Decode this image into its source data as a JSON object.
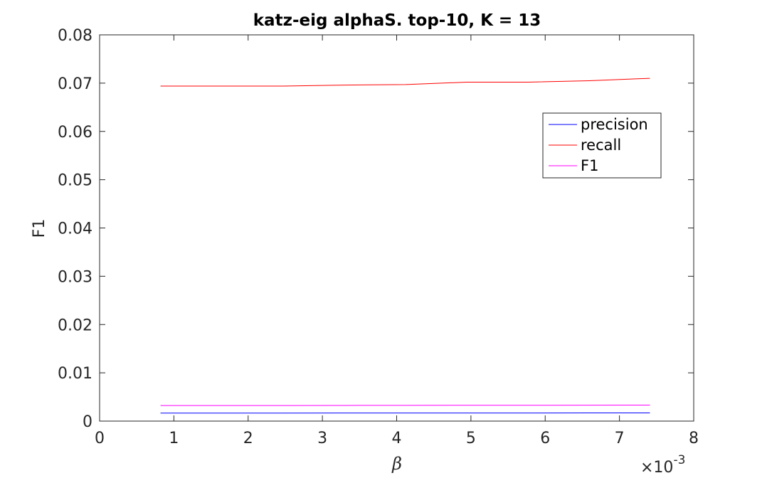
{
  "chart_data": {
    "type": "line",
    "title": "katz-eig alphaS. top-10, K = 13",
    "xlabel": "β",
    "ylabel": "F1",
    "x_exponent_label": "×10",
    "x_exponent_power": "-3",
    "xlim": [
      0,
      8
    ],
    "ylim": [
      0,
      0.08
    ],
    "xticks": [
      0,
      1,
      2,
      3,
      4,
      5,
      6,
      7,
      8
    ],
    "xtick_labels": [
      "0",
      "1",
      "2",
      "3",
      "4",
      "5",
      "6",
      "7",
      "8"
    ],
    "yticks": [
      0,
      0.01,
      0.02,
      0.03,
      0.04,
      0.05,
      0.06,
      0.07,
      0.08
    ],
    "ytick_labels": [
      "0",
      "0.01",
      "0.02",
      "0.03",
      "0.04",
      "0.05",
      "0.06",
      "0.07",
      "0.08"
    ],
    "grid": false,
    "legend_position": "top-right",
    "x": [
      0.82,
      1.65,
      2.47,
      3.29,
      4.12,
      4.94,
      5.76,
      6.59,
      7.41
    ],
    "series": [
      {
        "name": "precision",
        "color": "#0000ff",
        "values": [
          0.00165,
          0.00165,
          0.00166,
          0.00167,
          0.00167,
          0.00168,
          0.00168,
          0.00169,
          0.0017
        ]
      },
      {
        "name": "recall",
        "color": "#ff0000",
        "values": [
          0.0694,
          0.0694,
          0.0694,
          0.0696,
          0.0697,
          0.0702,
          0.0702,
          0.0705,
          0.071
        ]
      },
      {
        "name": "F1",
        "color": "#ff00ff",
        "values": [
          0.00322,
          0.00322,
          0.00323,
          0.00325,
          0.00326,
          0.00328,
          0.00328,
          0.0033,
          0.00332
        ]
      }
    ]
  }
}
